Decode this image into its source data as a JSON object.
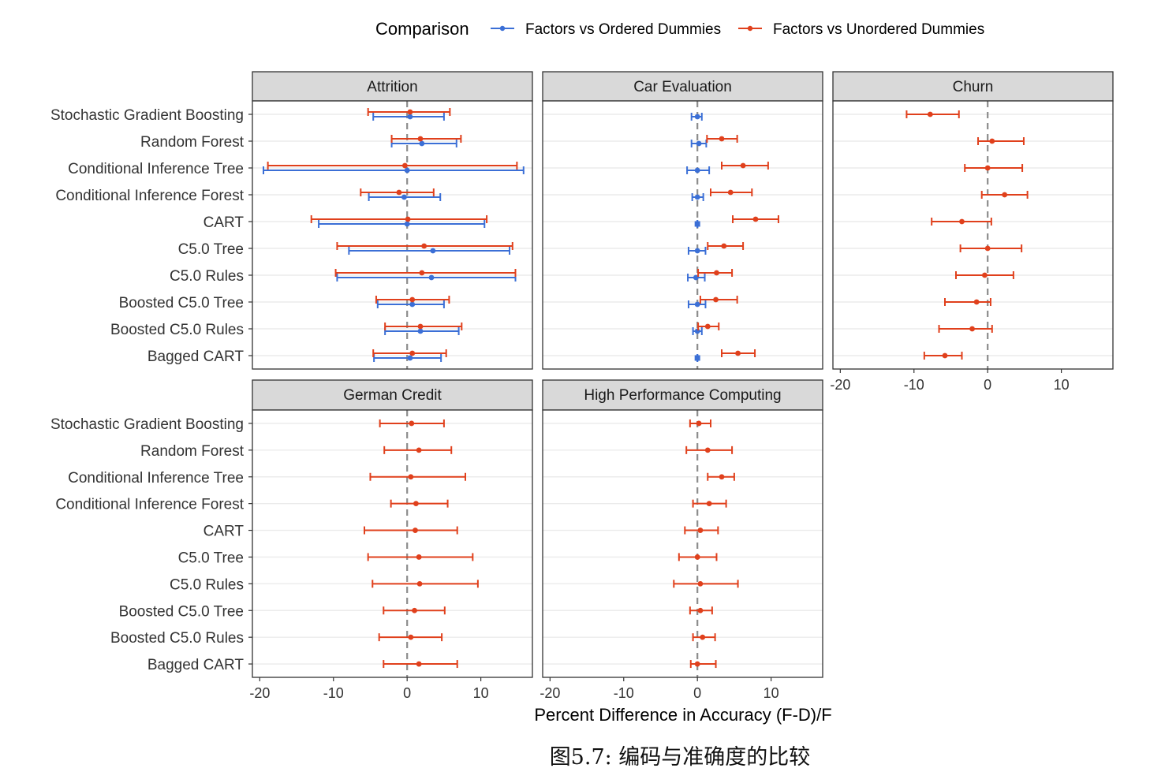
{
  "legend": {
    "title": "Comparison",
    "items": [
      {
        "label": "Factors vs Ordered Dummies",
        "color": "#3b6fd6"
      },
      {
        "label": "Factors vs Unordered Dummies",
        "color": "#e0401c"
      }
    ]
  },
  "caption": "图5.7: 编码与准确度的比较",
  "chart_data": {
    "type": "scatter",
    "subtype": "faceted point-range (dot with error bars)",
    "xlabel": "Percent Difference in Accuracy (F-D)/F",
    "ylabel": "",
    "xlim": [
      -21,
      17
    ],
    "xticks": [
      "-20",
      "-10",
      "0",
      "10"
    ],
    "reference_line": {
      "x": 0,
      "style": "dashed",
      "color": "#8c8c8c"
    },
    "grid": true,
    "legend_position": "top",
    "categories": [
      "Stochastic Gradient Boosting",
      "Random Forest",
      "Conditional Inference Tree",
      "Conditional Inference Forest",
      "CART",
      "C5.0 Tree",
      "C5.0 Rules",
      "Boosted C5.0 Tree",
      "Boosted C5.0 Rules",
      "Bagged CART"
    ],
    "series_names": [
      "Factors vs Ordered Dummies",
      "Factors vs Unordered Dummies"
    ],
    "series_colors": [
      "#3b6fd6",
      "#e0401c"
    ],
    "panels": [
      {
        "title": "Attrition",
        "series": [
          {
            "name": "Factors vs Ordered Dummies",
            "estimate": [
              0.4,
              2.0,
              0.0,
              -0.4,
              0.0,
              3.5,
              3.3,
              0.7,
              1.8,
              0.4
            ],
            "lower": [
              -4.6,
              -2.1,
              -19.5,
              -5.2,
              -12.0,
              -7.9,
              -9.5,
              -4.0,
              -3.0,
              -4.5
            ],
            "upper": [
              5.0,
              6.7,
              15.8,
              4.5,
              10.5,
              13.9,
              14.7,
              5.0,
              7.0,
              4.6
            ]
          },
          {
            "name": "Factors vs Unordered Dummies",
            "estimate": [
              0.4,
              1.8,
              -0.3,
              -1.1,
              0.1,
              2.3,
              2.0,
              0.7,
              1.8,
              0.7
            ],
            "lower": [
              -5.3,
              -2.1,
              -18.9,
              -6.3,
              -13.0,
              -9.5,
              -9.7,
              -4.2,
              -3.0,
              -4.6
            ],
            "upper": [
              5.8,
              7.3,
              14.9,
              3.6,
              10.8,
              14.3,
              14.7,
              5.7,
              7.4,
              5.3
            ]
          }
        ]
      },
      {
        "title": "Car Evaluation",
        "series": [
          {
            "name": "Factors vs Ordered Dummies",
            "estimate": [
              0.0,
              0.2,
              0.0,
              0.0,
              0.0,
              0.0,
              -0.2,
              0.0,
              0.0,
              0.0
            ],
            "lower": [
              -0.8,
              -0.8,
              -1.4,
              -0.7,
              0.0,
              -1.2,
              -1.3,
              -1.2,
              -0.6,
              0.0
            ],
            "upper": [
              0.6,
              1.2,
              1.6,
              0.8,
              0.0,
              1.1,
              1.0,
              1.1,
              0.6,
              0.0
            ]
          },
          {
            "name": "Factors vs Unordered Dummies",
            "estimate": null,
            "lower": null,
            "upper": null,
            "estimate_values": [
              null,
              3.3,
              6.2,
              4.5,
              7.9,
              3.6,
              2.6,
              2.5,
              1.4,
              5.5
            ],
            "lower_values": [
              null,
              1.3,
              3.3,
              1.8,
              4.8,
              1.4,
              0.1,
              0.4,
              0.1,
              3.3
            ],
            "upper_values": [
              null,
              5.4,
              9.6,
              7.4,
              11.0,
              6.2,
              4.7,
              5.4,
              2.9,
              7.8
            ]
          }
        ]
      },
      {
        "title": "Churn",
        "series": [
          {
            "name": "Factors vs Unordered Dummies",
            "estimate": [
              -7.8,
              0.6,
              0.0,
              2.3,
              -3.5,
              0.0,
              -0.4,
              -1.5,
              -2.1,
              -5.8
            ],
            "lower": [
              -11.0,
              -1.3,
              -3.1,
              -0.8,
              -7.6,
              -3.7,
              -4.3,
              -5.8,
              -6.6,
              -8.6
            ],
            "upper": [
              -3.9,
              4.9,
              4.7,
              5.4,
              0.5,
              4.6,
              3.5,
              0.4,
              0.6,
              -3.5
            ]
          }
        ]
      },
      {
        "title": "German Credit",
        "series": [
          {
            "name": "Factors vs Unordered Dummies",
            "estimate": [
              0.6,
              1.6,
              0.5,
              1.2,
              1.1,
              1.6,
              1.7,
              1.0,
              0.5,
              1.6
            ],
            "lower": [
              -3.7,
              -3.1,
              -5.0,
              -2.2,
              -5.8,
              -5.3,
              -4.7,
              -3.2,
              -3.8,
              -3.2
            ],
            "upper": [
              5.0,
              6.0,
              7.9,
              5.5,
              6.8,
              8.9,
              9.6,
              5.1,
              4.7,
              6.8
            ]
          }
        ]
      },
      {
        "title": "High Performance Computing",
        "series": [
          {
            "name": "Factors vs Unordered Dummies",
            "estimate": [
              0.2,
              1.4,
              3.3,
              1.6,
              0.4,
              0.0,
              0.4,
              0.4,
              0.7,
              0.0
            ],
            "lower": [
              -1.0,
              -1.5,
              1.4,
              -0.6,
              -1.7,
              -2.5,
              -3.2,
              -1.0,
              -0.6,
              -0.9
            ],
            "upper": [
              1.8,
              4.7,
              5.0,
              3.9,
              2.8,
              2.6,
              5.5,
              2.0,
              2.4,
              2.5
            ]
          }
        ]
      }
    ]
  }
}
